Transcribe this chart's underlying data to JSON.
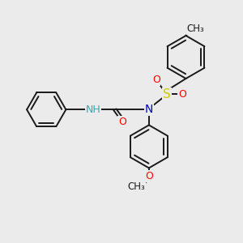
{
  "bg_color": "#ebebeb",
  "bond_color": "#1a1a1a",
  "bond_lw": 1.4,
  "atom_colors": {
    "N": "#0000cc",
    "NH": "#33aaaa",
    "O": "#ff0000",
    "S": "#cccc00",
    "C": "#1a1a1a"
  },
  "font_size": 8.5,
  "font_size_atom": 9
}
